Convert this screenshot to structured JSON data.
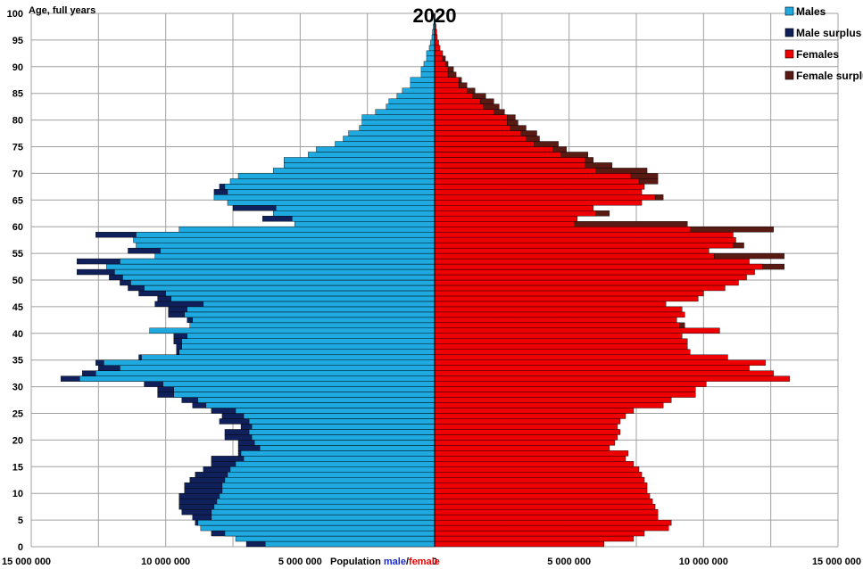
{
  "chart_data": {
    "type": "bar",
    "subtype": "population-pyramid",
    "title": "2020",
    "ylabel": "Age, full years",
    "xlabel_prefix": "Population ",
    "xlabel_male": "male",
    "xlabel_sep": "/",
    "xlabel_female": "female",
    "xlim": [
      0,
      15000000
    ],
    "x_ticks": [
      {
        "value": 15000000,
        "side": "left",
        "label": "15 000 000"
      },
      {
        "value": 10000000,
        "side": "left",
        "label": "10 000 000"
      },
      {
        "value": 5000000,
        "side": "left",
        "label": "5 000 000"
      },
      {
        "value": 0,
        "side": "center",
        "label": "0"
      },
      {
        "value": 5000000,
        "side": "right",
        "label": "5 000 000"
      },
      {
        "value": 10000000,
        "side": "right",
        "label": "10 000 000"
      },
      {
        "value": 15000000,
        "side": "right",
        "label": "15 000 000"
      }
    ],
    "y_ticks": [
      "0",
      "5",
      "10",
      "15",
      "20",
      "25",
      "30",
      "35",
      "40",
      "45",
      "50",
      "55",
      "60",
      "65",
      "70",
      "75",
      "80",
      "85",
      "90",
      "95",
      "100"
    ],
    "ylim": [
      0,
      100
    ],
    "grid": true,
    "legend_position": "top-right",
    "colors": {
      "males": "#1ea9e1",
      "male_surplus": "#10205a",
      "females": "#ee0000",
      "female_surplus": "#5a1a14"
    },
    "legend": [
      {
        "name": "Males",
        "color": "#1ea9e1"
      },
      {
        "name": "Male surplus",
        "color": "#10205a"
      },
      {
        "name": "Females",
        "color": "#ee0000"
      },
      {
        "name": "Female surplus",
        "color": "#5a1a14"
      }
    ],
    "ages": [
      0,
      1,
      2,
      3,
      4,
      5,
      6,
      7,
      8,
      9,
      10,
      11,
      12,
      13,
      14,
      15,
      16,
      17,
      18,
      19,
      20,
      21,
      22,
      23,
      24,
      25,
      26,
      27,
      28,
      29,
      30,
      31,
      32,
      33,
      34,
      35,
      36,
      37,
      38,
      39,
      40,
      41,
      42,
      43,
      44,
      45,
      46,
      47,
      48,
      49,
      50,
      51,
      52,
      53,
      54,
      55,
      56,
      57,
      58,
      59,
      60,
      61,
      62,
      63,
      64,
      65,
      66,
      67,
      68,
      69,
      70,
      71,
      72,
      73,
      74,
      75,
      76,
      77,
      78,
      79,
      80,
      81,
      82,
      83,
      84,
      85,
      86,
      87,
      88,
      89,
      90,
      91,
      92,
      93,
      94,
      95,
      96,
      97,
      98,
      99
    ],
    "males": [
      7000000,
      7400000,
      8300000,
      8700000,
      8900000,
      9000000,
      9400000,
      9500000,
      9500000,
      9500000,
      9300000,
      9300000,
      9100000,
      8900000,
      8600000,
      8300000,
      8300000,
      7300000,
      7300000,
      7300000,
      7800000,
      7800000,
      7200000,
      8000000,
      7900000,
      8300000,
      9000000,
      9400000,
      10300000,
      10300000,
      10800000,
      13900000,
      13100000,
      12500000,
      12600000,
      11000000,
      9600000,
      9600000,
      9700000,
      9700000,
      10600000,
      9100000,
      9200000,
      9900000,
      9900000,
      10400000,
      10300000,
      11000000,
      11400000,
      11700000,
      12100000,
      13300000,
      12200000,
      13300000,
      10400000,
      11400000,
      11100000,
      11200000,
      12600000,
      9500000,
      5200000,
      6400000,
      6000000,
      7500000,
      7700000,
      8200000,
      8200000,
      8000000,
      7600000,
      7300000,
      6000000,
      5600000,
      5600000,
      4700000,
      4400000,
      3700000,
      3400000,
      3200000,
      2800000,
      2700000,
      2700000,
      2200000,
      1800000,
      1700000,
      1400000,
      1200000,
      900000,
      900000,
      500000,
      500000,
      400000,
      300000,
      300000,
      200000,
      150000,
      100000,
      80000,
      50000,
      30000,
      20000
    ],
    "females": [
      6300000,
      7400000,
      7800000,
      8700000,
      8800000,
      8300000,
      8300000,
      8200000,
      8100000,
      8000000,
      7900000,
      7900000,
      7800000,
      7700000,
      7600000,
      7400000,
      7100000,
      7200000,
      6500000,
      6700000,
      6800000,
      6900000,
      6800000,
      6900000,
      7100000,
      7400000,
      8500000,
      8800000,
      9700000,
      9700000,
      10100000,
      13200000,
      12600000,
      11700000,
      12300000,
      10900000,
      9500000,
      9400000,
      9400000,
      9200000,
      10600000,
      9300000,
      9000000,
      9300000,
      9200000,
      8600000,
      9800000,
      10000000,
      10800000,
      11300000,
      11600000,
      11900000,
      13000000,
      11700000,
      13000000,
      10200000,
      11500000,
      11200000,
      11100000,
      12600000,
      9400000,
      5300000,
      6500000,
      5900000,
      7700000,
      8500000,
      7700000,
      7800000,
      8300000,
      8300000,
      7900000,
      6600000,
      5900000,
      5700000,
      4900000,
      4600000,
      3900000,
      3800000,
      3400000,
      3100000,
      3000000,
      2600000,
      2400000,
      2200000,
      1900000,
      1500000,
      1200000,
      1000000,
      800000,
      700000,
      500000,
      400000,
      300000,
      200000,
      150000,
      100000,
      80000,
      50000,
      30000,
      20000
    ]
  }
}
